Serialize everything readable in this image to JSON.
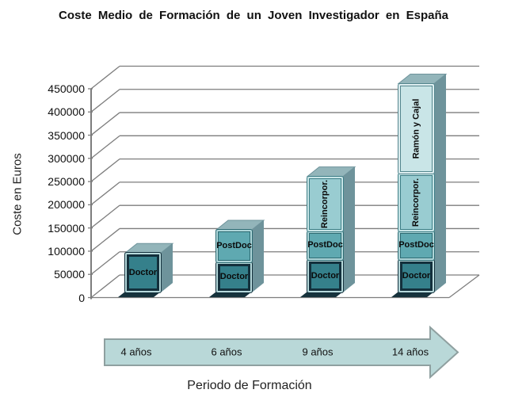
{
  "title": "Coste Medio de Formación de un Joven Investigador en España",
  "y_axis": {
    "label": "Coste en Euros",
    "ticks": [
      0,
      50000,
      100000,
      150000,
      200000,
      250000,
      300000,
      350000,
      400000,
      450000
    ]
  },
  "x_axis": {
    "label": "Periodo de Formación",
    "categories": [
      "4 años",
      "6 años",
      "9 años",
      "14 años"
    ]
  },
  "chart_data": {
    "type": "bar",
    "subtype": "stacked-3d",
    "title": "Coste Medio de Formación de un Joven Investigador en España",
    "xlabel": "Periodo de Formación",
    "ylabel": "Coste en Euros",
    "ylim": [
      0,
      450000
    ],
    "ytick_step": 50000,
    "grid": true,
    "legend": false,
    "categories": [
      "4 años",
      "6 años",
      "9 años",
      "14 años"
    ],
    "series": [
      {
        "name": "Doctor",
        "values": [
          85000,
          65000,
          70000,
          70000
        ],
        "fill": "#35808b",
        "rim": "#b7d9db",
        "border": "#13303c",
        "border_px": 3
      },
      {
        "name": "PostDoc",
        "values": [
          0,
          70000,
          62000,
          62000
        ],
        "fill": "#5fa9b1",
        "rim": "#aed6d9",
        "border": "#2d6a72",
        "border_px": 1
      },
      {
        "name": "Reincorpor.",
        "values": [
          0,
          0,
          118000,
          125000
        ],
        "fill": "#99ccd1",
        "rim": "#c8e5e7",
        "border": "#3d7e86",
        "border_px": 1
      },
      {
        "name": "Ramón y Cajal",
        "values": [
          0,
          0,
          0,
          193000
        ],
        "fill": "#c9e5e7",
        "rim": "#deeef0",
        "border": "#54868e",
        "border_px": 1
      }
    ],
    "totals_estimated": [
      85000,
      135000,
      250000,
      450000
    ]
  },
  "colors": {
    "grid": "#7d7d7d",
    "axis": "#6f6f6f",
    "bar_side": "#6e939b",
    "bar_top": "#93b5ba",
    "bar_base": "#16323c",
    "arrow_fill": "#b9d8d8",
    "arrow_stroke": "#8fa0a0",
    "text": "#111111"
  }
}
